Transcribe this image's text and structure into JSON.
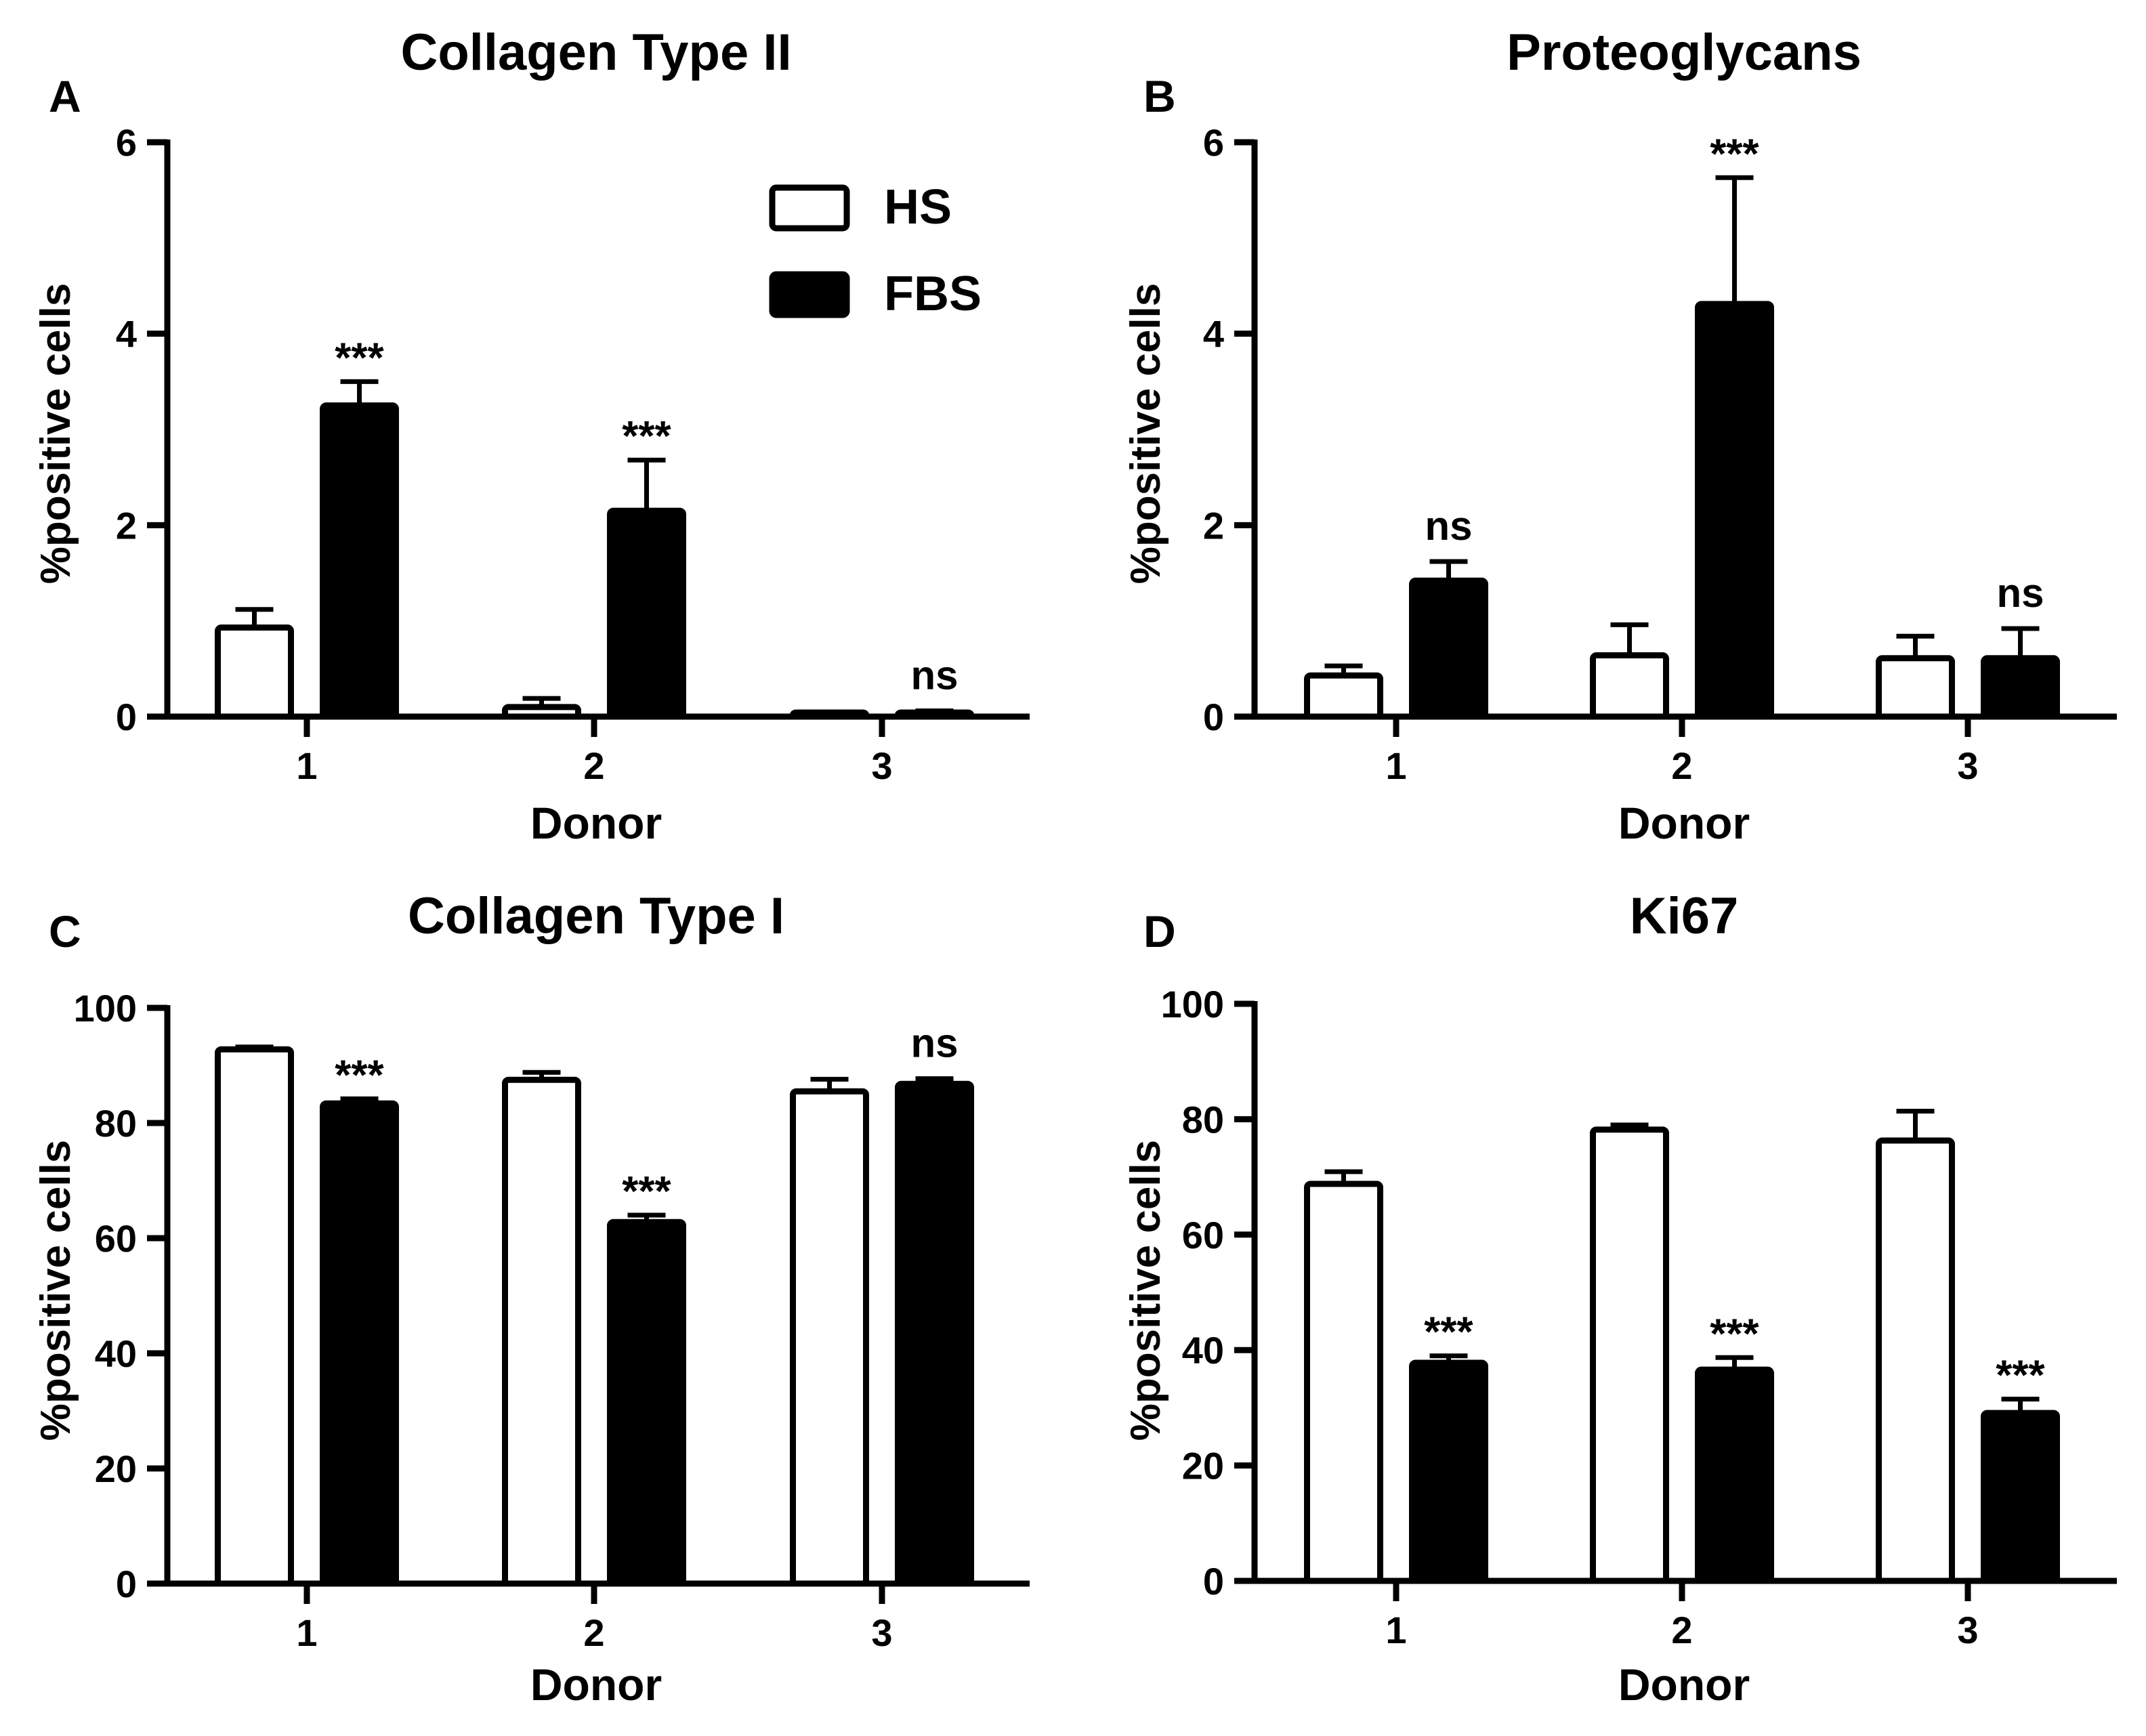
{
  "legend": {
    "entries": [
      {
        "name": "HS",
        "fill": "#ffffff"
      },
      {
        "name": "FBS",
        "fill": "#000000"
      }
    ],
    "placement": "top-right of panel A"
  },
  "colors": {
    "hs": "#ffffff",
    "fbs": "#000000",
    "stroke": "#000000"
  },
  "chart_data": [
    {
      "panel": "A",
      "type": "bar",
      "title": "Collagen Type II",
      "xlabel": "Donor",
      "ylabel": "%positive cells",
      "ylim": [
        0,
        6
      ],
      "yticks": [
        "0",
        "2",
        "4",
        "6"
      ],
      "categories": [
        "1",
        "2",
        "3"
      ],
      "series": [
        {
          "name": "HS",
          "values": [
            0.93,
            0.1,
            0.02
          ],
          "errors": [
            0.19,
            0.09,
            0.01
          ]
        },
        {
          "name": "FBS",
          "values": [
            3.25,
            2.15,
            0.02
          ],
          "errors": [
            0.25,
            0.53,
            0.04
          ]
        }
      ],
      "annotations": [
        "***",
        "***",
        "ns"
      ]
    },
    {
      "panel": "B",
      "type": "bar",
      "title": "Proteoglycans",
      "xlabel": "Donor",
      "ylabel": "%positive cells",
      "ylim": [
        0,
        6
      ],
      "yticks": [
        "0",
        "2",
        "4",
        "6"
      ],
      "categories": [
        "1",
        "2",
        "3"
      ],
      "series": [
        {
          "name": "HS",
          "values": [
            0.43,
            0.64,
            0.61
          ],
          "errors": [
            0.1,
            0.32,
            0.23
          ]
        },
        {
          "name": "FBS",
          "values": [
            1.42,
            4.31,
            0.61
          ],
          "errors": [
            0.2,
            1.32,
            0.31
          ]
        }
      ],
      "annotations": [
        "ns",
        "***",
        "ns"
      ]
    },
    {
      "panel": "C",
      "type": "bar",
      "title": "Collagen Type I",
      "xlabel": "Donor",
      "ylabel": "%positive cells",
      "ylim": [
        0,
        100
      ],
      "yticks": [
        "0",
        "20",
        "40",
        "60",
        "80",
        "100"
      ],
      "categories": [
        "1",
        "2",
        "3"
      ],
      "series": [
        {
          "name": "HS",
          "values": [
            92.8,
            87.5,
            85.5
          ],
          "errors": [
            0.4,
            1.3,
            2.1
          ]
        },
        {
          "name": "FBS",
          "values": [
            83.4,
            62.8,
            86.8
          ],
          "errors": [
            0.8,
            1.2,
            0.9
          ]
        }
      ],
      "annotations": [
        "***",
        "***",
        "ns"
      ]
    },
    {
      "panel": "D",
      "type": "bar",
      "title": "Ki67",
      "xlabel": "Donor",
      "ylabel": "%positive cells",
      "ylim": [
        0,
        100
      ],
      "yticks": [
        "0",
        "20",
        "40",
        "60",
        "80",
        "100"
      ],
      "categories": [
        "1",
        "2",
        "3"
      ],
      "series": [
        {
          "name": "HS",
          "values": [
            68.8,
            78.2,
            76.3
          ],
          "errors": [
            2.1,
            0.8,
            5.1
          ]
        },
        {
          "name": "FBS",
          "values": [
            37.8,
            36.6,
            29.1
          ],
          "errors": [
            1.2,
            2.1,
            2.4
          ]
        }
      ],
      "annotations": [
        "***",
        "***",
        "***"
      ]
    }
  ]
}
